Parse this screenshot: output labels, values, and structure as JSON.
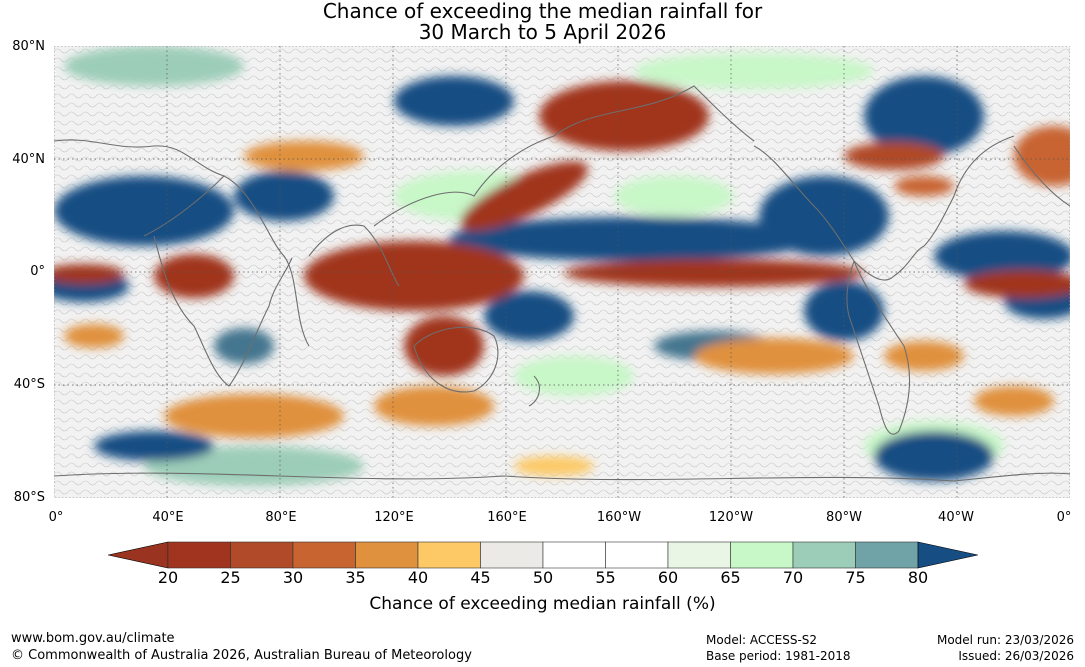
{
  "title": {
    "line1": "Chance of exceeding the median rainfall for",
    "line2": "30 March to 5 April 2026"
  },
  "map": {
    "lat_labels": [
      "80°N",
      "40°N",
      "0°",
      "40°S",
      "80°S"
    ],
    "lon_labels": [
      "0°",
      "40°E",
      "80°E",
      "120°E",
      "160°E",
      "160°W",
      "120°W",
      "80°W",
      "40°W",
      "0°"
    ]
  },
  "colorbar": {
    "title": "Chance of exceeding median rainfall (%)",
    "ticks": [
      "20",
      "25",
      "30",
      "35",
      "40",
      "45",
      "50",
      "55",
      "60",
      "65",
      "70",
      "75",
      "80"
    ],
    "colors": [
      "#a0341e",
      "#b04a28",
      "#c86430",
      "#e0913e",
      "#fdc966",
      "#ebeae6",
      "#ffffff",
      "#ffffff",
      "#e9f6e6",
      "#c8f7c8",
      "#9ccdb8",
      "#70a3a8",
      "#44768f"
    ],
    "under_color": "#9a3420",
    "over_color": "#164d83"
  },
  "footer": {
    "url": "www.bom.gov.au/climate",
    "copyright": "© Commonwealth of Australia 2026, Australian Bureau of Meteorology",
    "model": "Model: ACCESS-S2",
    "base_period": "Base period: 1981-2018",
    "model_run": "Model run: 23/03/2026",
    "issued": "Issued: 26/03/2026"
  }
}
